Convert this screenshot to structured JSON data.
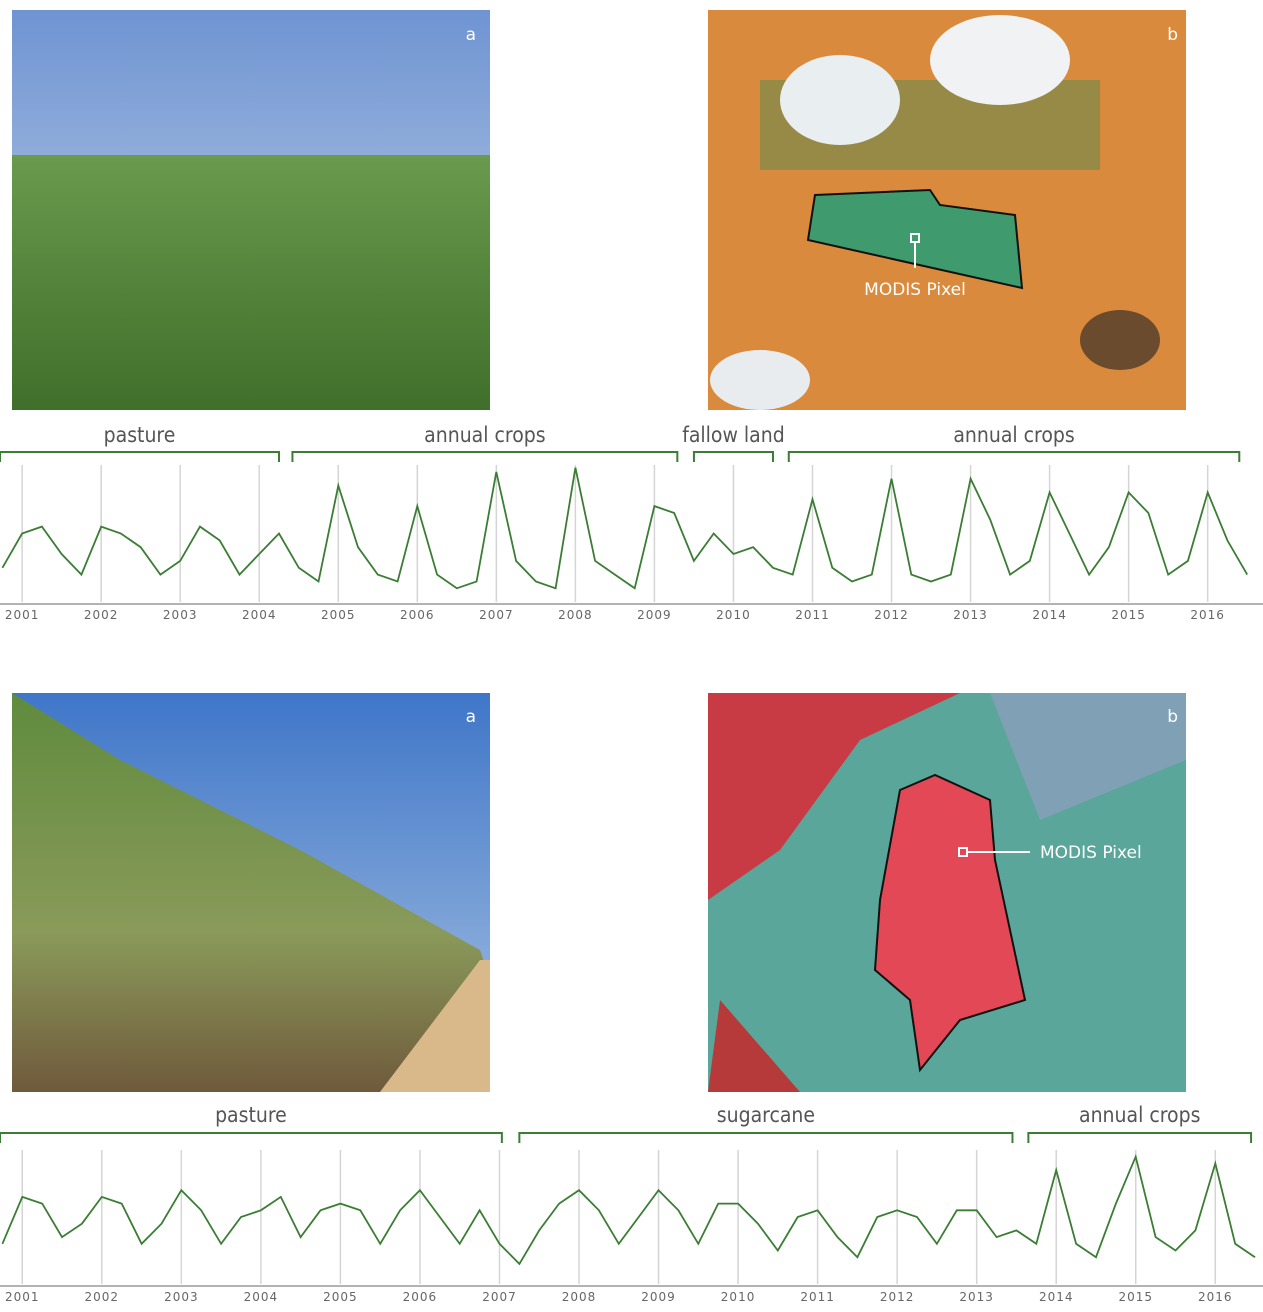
{
  "panels": [
    {
      "photo_label": "a",
      "map_label": "b",
      "pixel_label": "MODIS Pixel"
    },
    {
      "photo_label": "a",
      "map_label": "b",
      "pixel_label": "MODIS Pixel"
    }
  ],
  "chart_data": [
    {
      "type": "line",
      "color": "#3b7d34",
      "grid": true,
      "xlim": [
        2000.72,
        2016.7
      ],
      "ylim": [
        0,
        1
      ],
      "xticks": [
        2001,
        2002,
        2003,
        2004,
        2005,
        2006,
        2007,
        2008,
        2009,
        2010,
        2011,
        2012,
        2013,
        2014,
        2015,
        2016
      ],
      "x": [
        2000.75,
        2001,
        2001.25,
        2001.5,
        2001.75,
        2002,
        2002.25,
        2002.5,
        2002.75,
        2003,
        2003.25,
        2003.5,
        2003.75,
        2004,
        2004.25,
        2004.5,
        2004.75,
        2005,
        2005.25,
        2005.5,
        2005.75,
        2006,
        2006.25,
        2006.5,
        2006.75,
        2007,
        2007.25,
        2007.5,
        2007.75,
        2008,
        2008.25,
        2008.5,
        2008.75,
        2009,
        2009.25,
        2009.5,
        2009.75,
        2010,
        2010.25,
        2010.5,
        2010.75,
        2011,
        2011.25,
        2011.5,
        2011.75,
        2012,
        2012.25,
        2012.5,
        2012.75,
        2013,
        2013.25,
        2013.5,
        2013.75,
        2014,
        2014.25,
        2014.5,
        2014.75,
        2015,
        2015.25,
        2015.5,
        2015.75,
        2016,
        2016.25,
        2016.5
      ],
      "values": [
        0.25,
        0.5,
        0.55,
        0.35,
        0.2,
        0.55,
        0.5,
        0.4,
        0.2,
        0.3,
        0.55,
        0.45,
        0.2,
        0.35,
        0.5,
        0.25,
        0.15,
        0.85,
        0.4,
        0.2,
        0.15,
        0.7,
        0.2,
        0.1,
        0.15,
        0.95,
        0.3,
        0.15,
        0.1,
        0.98,
        0.3,
        0.2,
        0.1,
        0.7,
        0.65,
        0.3,
        0.5,
        0.35,
        0.4,
        0.25,
        0.2,
        0.75,
        0.25,
        0.15,
        0.2,
        0.9,
        0.2,
        0.15,
        0.2,
        0.9,
        0.6,
        0.2,
        0.3,
        0.8,
        0.5,
        0.2,
        0.4,
        0.8,
        0.65,
        0.2,
        0.3,
        0.8,
        0.45,
        0.2
      ],
      "annotations": [
        {
          "text": "pasture",
          "x0": 2000.72,
          "x1": 2004.25
        },
        {
          "text": "annual crops",
          "x0": 2004.42,
          "x1": 2009.29
        },
        {
          "text": "fallow land",
          "x0": 2009.5,
          "x1": 2010.5
        },
        {
          "text": "annual crops",
          "x0": 2010.7,
          "x1": 2016.4
        }
      ]
    },
    {
      "type": "line",
      "color": "#3b7d34",
      "grid": true,
      "xlim": [
        2000.72,
        2016.6
      ],
      "ylim": [
        0,
        1
      ],
      "xticks": [
        2001,
        2002,
        2003,
        2004,
        2005,
        2006,
        2007,
        2008,
        2009,
        2010,
        2011,
        2012,
        2013,
        2014,
        2015,
        2016
      ],
      "x": [
        2000.75,
        2001,
        2001.25,
        2001.5,
        2001.75,
        2002,
        2002.25,
        2002.5,
        2002.75,
        2003,
        2003.25,
        2003.5,
        2003.75,
        2004,
        2004.25,
        2004.5,
        2004.75,
        2005,
        2005.25,
        2005.5,
        2005.75,
        2006,
        2006.25,
        2006.5,
        2006.75,
        2007,
        2007.25,
        2007.5,
        2007.75,
        2008,
        2008.25,
        2008.5,
        2008.75,
        2009,
        2009.25,
        2009.5,
        2009.75,
        2010,
        2010.25,
        2010.5,
        2010.75,
        2011,
        2011.25,
        2011.5,
        2011.75,
        2012,
        2012.25,
        2012.5,
        2012.75,
        2013,
        2013.25,
        2013.5,
        2013.75,
        2014,
        2014.25,
        2014.5,
        2014.75,
        2015,
        2015.25,
        2015.5,
        2015.75,
        2016,
        2016.25,
        2016.5
      ],
      "values": [
        0.3,
        0.65,
        0.6,
        0.35,
        0.45,
        0.65,
        0.6,
        0.3,
        0.45,
        0.7,
        0.55,
        0.3,
        0.5,
        0.55,
        0.65,
        0.35,
        0.55,
        0.6,
        0.55,
        0.3,
        0.55,
        0.7,
        0.5,
        0.3,
        0.55,
        0.3,
        0.15,
        0.4,
        0.6,
        0.7,
        0.55,
        0.3,
        0.5,
        0.7,
        0.55,
        0.3,
        0.6,
        0.6,
        0.45,
        0.25,
        0.5,
        0.55,
        0.35,
        0.2,
        0.5,
        0.55,
        0.5,
        0.3,
        0.55,
        0.55,
        0.35,
        0.4,
        0.3,
        0.85,
        0.3,
        0.2,
        0.6,
        0.95,
        0.35,
        0.25,
        0.4,
        0.9,
        0.3,
        0.2
      ],
      "annotations": [
        {
          "text": "pasture",
          "x0": 2000.72,
          "x1": 2007.03
        },
        {
          "text": "sugarcane",
          "x0": 2007.25,
          "x1": 2013.45
        },
        {
          "text": "annual crops",
          "x0": 2013.65,
          "x1": 2016.45
        }
      ]
    }
  ]
}
